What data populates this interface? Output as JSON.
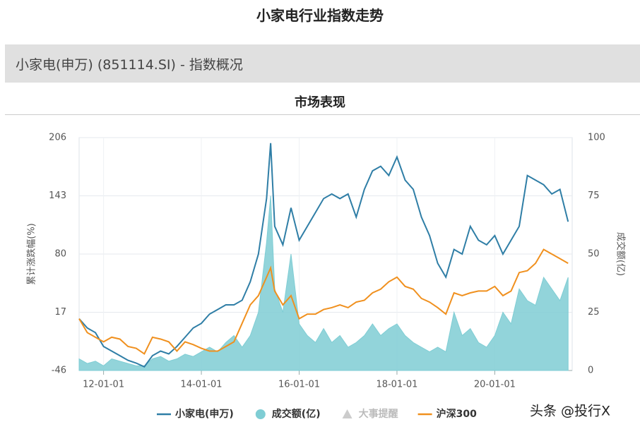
{
  "page_title": "小家电行业指数走势",
  "header": "小家电(申万) (851114.SI) - 指数概况",
  "section_title": "市场表现",
  "watermark": "头条 @投行X",
  "chart_data": {
    "type": "line",
    "ylabel": "累计涨跌幅(%)",
    "y2label": "成交额(亿)",
    "x": [
      "11-07-01",
      "11-09-01",
      "11-11-01",
      "12-01-01",
      "12-03-01",
      "12-05-01",
      "12-07-01",
      "12-09-01",
      "12-11-01",
      "13-01-01",
      "13-03-01",
      "13-05-01",
      "13-07-01",
      "13-09-01",
      "13-11-01",
      "14-01-01",
      "14-03-01",
      "14-05-01",
      "14-07-01",
      "14-09-01",
      "14-11-01",
      "15-01-01",
      "15-03-01",
      "15-05-01",
      "15-06-01",
      "15-07-01",
      "15-09-01",
      "15-11-01",
      "16-01-01",
      "16-03-01",
      "16-05-01",
      "16-07-01",
      "16-09-01",
      "16-11-01",
      "17-01-01",
      "17-03-01",
      "17-05-01",
      "17-07-01",
      "17-09-01",
      "17-11-01",
      "18-01-01",
      "18-03-01",
      "18-05-01",
      "18-07-01",
      "18-09-01",
      "18-11-01",
      "19-01-01",
      "19-03-01",
      "19-05-01",
      "19-07-01",
      "19-09-01",
      "19-11-01",
      "20-01-01",
      "20-03-01",
      "20-05-01",
      "20-07-01",
      "20-09-01",
      "20-11-01",
      "21-01-01",
      "21-03-01",
      "21-05-01",
      "21-07-01"
    ],
    "xlim": [
      "11-07-01",
      "21-08-01"
    ],
    "xticks": [
      "12-01-01",
      "14-01-01",
      "16-01-01",
      "18-01-01",
      "20-01-01"
    ],
    "ylim": [
      -46,
      206
    ],
    "yticks": [
      -46,
      17,
      80,
      143,
      206
    ],
    "y2lim": [
      0,
      100
    ],
    "y2ticks": [
      0,
      25,
      50,
      75,
      100
    ],
    "grid": true,
    "series": [
      {
        "name": "小家电(申万)",
        "color": "#2f7ea6",
        "style": "line",
        "values": [
          10,
          0,
          -5,
          -20,
          -25,
          -30,
          -35,
          -38,
          -42,
          -30,
          -25,
          -28,
          -20,
          -10,
          0,
          5,
          15,
          20,
          25,
          25,
          30,
          50,
          80,
          140,
          200,
          110,
          90,
          130,
          95,
          110,
          125,
          140,
          145,
          140,
          145,
          120,
          150,
          170,
          175,
          165,
          185,
          160,
          150,
          120,
          100,
          70,
          55,
          85,
          80,
          110,
          95,
          90,
          100,
          80,
          95,
          110,
          165,
          160,
          155,
          145,
          150,
          115
        ]
      },
      {
        "name": "成交额(亿)",
        "color": "#7fcdd4",
        "style": "area",
        "axis": "y2",
        "values": [
          5,
          3,
          4,
          2,
          5,
          4,
          3,
          2,
          2,
          5,
          6,
          4,
          5,
          7,
          6,
          8,
          10,
          8,
          12,
          15,
          10,
          15,
          25,
          55,
          75,
          35,
          25,
          50,
          20,
          15,
          12,
          18,
          12,
          15,
          10,
          12,
          15,
          20,
          15,
          18,
          20,
          15,
          12,
          10,
          8,
          10,
          8,
          25,
          15,
          18,
          12,
          10,
          15,
          25,
          20,
          35,
          30,
          28,
          40,
          35,
          30,
          40
        ]
      },
      {
        "name": "沪深300",
        "color": "#f0901e",
        "style": "line",
        "values": [
          10,
          -5,
          -10,
          -15,
          -10,
          -12,
          -20,
          -22,
          -28,
          -10,
          -12,
          -15,
          -25,
          -15,
          -18,
          -22,
          -25,
          -25,
          -20,
          -15,
          5,
          25,
          35,
          55,
          65,
          40,
          25,
          35,
          10,
          15,
          15,
          20,
          22,
          25,
          22,
          28,
          30,
          38,
          42,
          50,
          55,
          45,
          42,
          32,
          28,
          22,
          15,
          38,
          35,
          38,
          40,
          40,
          45,
          35,
          40,
          60,
          62,
          70,
          85,
          80,
          75,
          70
        ]
      }
    ],
    "event_marker": {
      "name": "大事提醒",
      "color": "#cccccc"
    }
  }
}
